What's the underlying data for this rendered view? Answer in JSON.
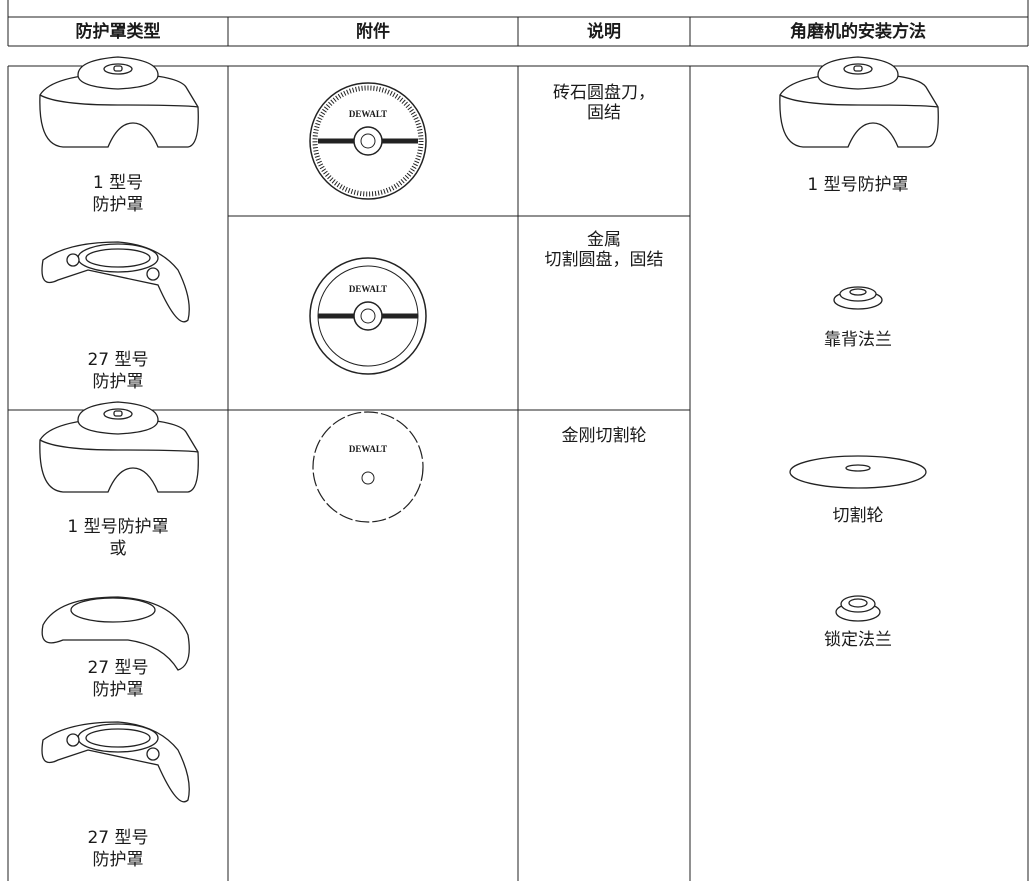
{
  "table": {
    "header": [
      "防护罩类型",
      "附件",
      "说明",
      "角磨机的安装方法"
    ],
    "rows": [
      {
        "guards": [
          [
            "1 型号",
            "防护罩"
          ],
          [
            "27 型号",
            "防护罩"
          ]
        ],
        "accessories": [
          {
            "logo": "DEWALT",
            "description": [
              "砖石圆盘刀，",
              "固结"
            ]
          },
          {
            "logo": "DEWALT",
            "description": [
              "金属",
              "切割圆盘，固结"
            ]
          }
        ]
      },
      {
        "guards": [
          [
            "1 型号防护罩",
            "或"
          ],
          [
            "27 型号",
            "防护罩"
          ],
          [
            "27 型号",
            "防护罩"
          ]
        ],
        "accessories": [
          {
            "logo": "DEWALT",
            "description": [
              "金刚切割轮"
            ]
          }
        ]
      }
    ],
    "mounting": [
      "1 型号防护罩",
      "靠背法兰",
      "切割轮",
      "锁定法兰"
    ]
  }
}
